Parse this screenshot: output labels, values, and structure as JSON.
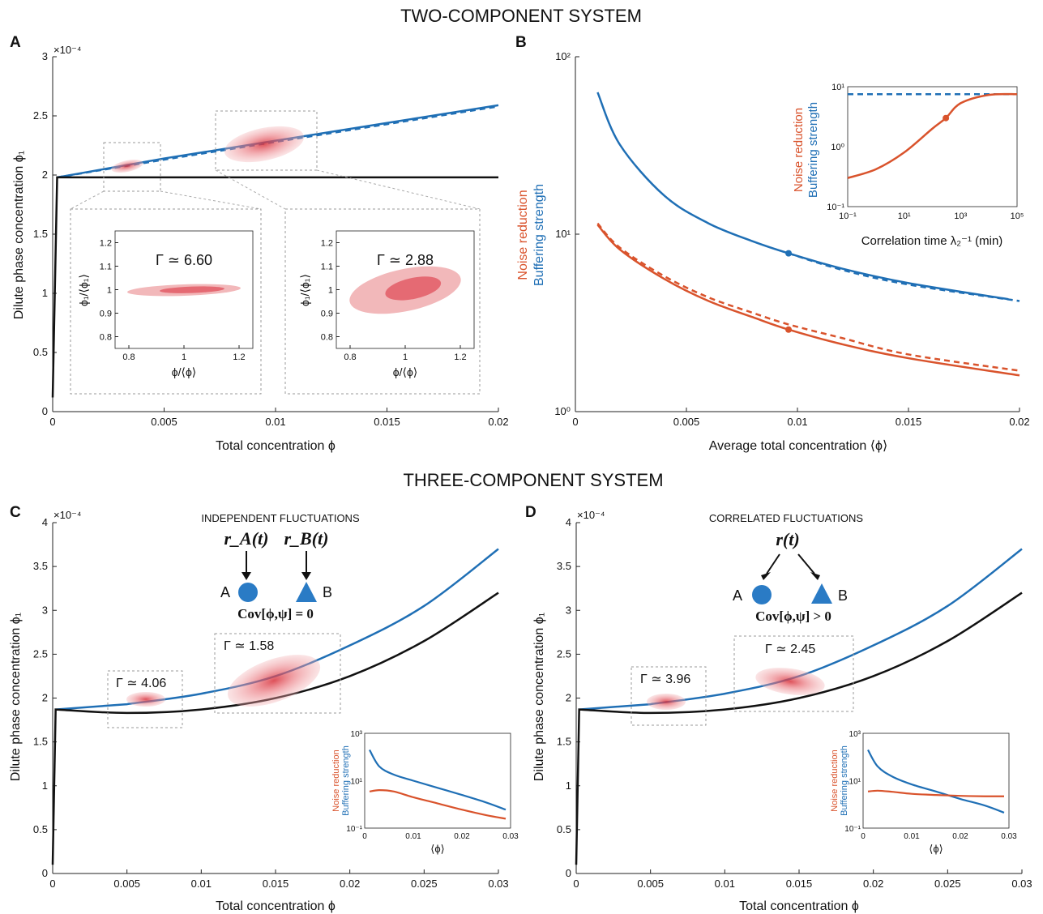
{
  "titles": {
    "two": "TWO-COMPONENT SYSTEM",
    "three": "THREE-COMPONENT SYSTEM"
  },
  "colors": {
    "blue": "#1f6fb5",
    "orange": "#d9532c",
    "black": "#111111",
    "pink": "#e8828a"
  },
  "panels": {
    "A": {
      "label": "A",
      "exponent": "×10⁻⁴",
      "xlabel": "Total concentration ϕ",
      "ylabel": "Dilute phase concentration ϕ₁",
      "inset_left_gamma": "Γ ≃ 6.60",
      "inset_right_gamma": "Γ ≃ 2.88",
      "inset_ylabel": "ϕ₁/⟨ϕ₁⟩",
      "inset_xlabel": "ϕ/⟨ϕ⟩"
    },
    "B": {
      "label": "B",
      "xlabel": "Average total concentration ⟨ϕ⟩",
      "legend_noise": "Noise reduction",
      "legend_buffer": "Buffering strength",
      "inset_xlabel": "Correlation time λ₂⁻¹ (min)"
    },
    "C": {
      "label": "C",
      "exponent": "×10⁻⁴",
      "xlabel": "Total concentration ϕ",
      "ylabel": "Dilute phase concentration ϕ₁",
      "heading": "INDEPENDENT FLUCTUATIONS",
      "rA": "r_A(t)",
      "rB": "r_B(t)",
      "A": "A",
      "B": "B",
      "cov": "Cov[ϕ,ψ] = 0",
      "gamma1": "Γ ≃ 4.06",
      "gamma2": "Γ ≃ 1.58",
      "inset_noise": "Noise reduction",
      "inset_buffer": "Buffering strength",
      "inset_xlabel": "⟨ϕ⟩"
    },
    "D": {
      "label": "D",
      "exponent": "×10⁻⁴",
      "xlabel": "Total concentration ϕ",
      "ylabel": "Dilute phase concentration ϕ₁",
      "heading": "CORRELATED FLUCTUATIONS",
      "r": "r(t)",
      "A": "A",
      "B": "B",
      "cov": "Cov[ϕ,ψ] > 0",
      "gamma1": "Γ ≃ 3.96",
      "gamma2": "Γ ≃ 2.45",
      "inset_noise": "Noise reduction",
      "inset_buffer": "Buffering strength",
      "inset_xlabel": "⟨ϕ⟩"
    }
  },
  "chart_data": [
    {
      "panel": "A",
      "type": "line",
      "xlim": [
        0,
        0.02
      ],
      "ylim": [
        0,
        3
      ],
      "xticks": [
        "0",
        "0.005",
        "0.01",
        "0.015",
        "0.02"
      ],
      "yticks": [
        "0",
        "0.5",
        "1",
        "1.5",
        "2",
        "2.5",
        "3"
      ],
      "series": [
        {
          "style": "solid-blue",
          "x": [
            0.0002,
            0.005,
            0.01,
            0.015,
            0.02
          ],
          "y": [
            1.98,
            2.14,
            2.29,
            2.44,
            2.59
          ]
        },
        {
          "style": "dashed-blue",
          "x": [
            0.0002,
            0.005,
            0.01,
            0.015,
            0.02
          ],
          "y": [
            1.98,
            2.13,
            2.28,
            2.43,
            2.58
          ]
        },
        {
          "style": "solid-black",
          "x": [
            0,
            0.0002,
            0.005,
            0.01,
            0.015,
            0.02
          ],
          "y": [
            0.12,
            1.98,
            1.98,
            1.98,
            1.98,
            1.98
          ]
        }
      ],
      "insets": [
        {
          "xlim": [
            0.75,
            1.25
          ],
          "ylim": [
            0.75,
            1.25
          ],
          "xticks": [
            "0.8",
            "1",
            "1.2"
          ],
          "yticks": [
            "0.8",
            "0.9",
            "1",
            "1.1",
            "1.2"
          ]
        },
        {
          "xlim": [
            0.75,
            1.25
          ],
          "ylim": [
            0.75,
            1.25
          ],
          "xticks": [
            "0.8",
            "1",
            "1.2"
          ],
          "yticks": [
            "0.8",
            "0.9",
            "1",
            "1.1",
            "1.2"
          ]
        }
      ]
    },
    {
      "panel": "B",
      "type": "line",
      "yscale": "log",
      "xlim": [
        0,
        0.02
      ],
      "ylim": [
        1,
        100
      ],
      "xticks": [
        "0",
        "0.005",
        "0.01",
        "0.015",
        "0.02"
      ],
      "yticks": [
        "10⁰",
        "10¹",
        "10²"
      ],
      "series": [
        {
          "name": "Buffering strength",
          "style": "solid-blue",
          "x": [
            0.001,
            0.002,
            0.004,
            0.006,
            0.008,
            0.0096,
            0.012,
            0.015,
            0.0195
          ],
          "y": [
            63,
            32,
            16.5,
            11.5,
            9.1,
            7.8,
            6.4,
            5.3,
            4.3
          ]
        },
        {
          "name": "Buffering strength",
          "style": "dashed-blue",
          "x": [
            0.0096,
            0.012,
            0.015,
            0.02
          ],
          "y": [
            7.8,
            6.3,
            5.2,
            4.2
          ]
        },
        {
          "name": "Noise reduction",
          "style": "solid-orange",
          "x": [
            0.001,
            0.002,
            0.004,
            0.006,
            0.008,
            0.0096,
            0.012,
            0.015,
            0.02
          ],
          "y": [
            11.3,
            8.2,
            5.6,
            4.2,
            3.4,
            2.9,
            2.4,
            2.0,
            1.6
          ]
        },
        {
          "name": "Noise reduction",
          "style": "dashed-orange",
          "x": [
            0.001,
            0.002,
            0.004,
            0.006,
            0.008,
            0.0096,
            0.012,
            0.015,
            0.02
          ],
          "y": [
            11.5,
            8.4,
            5.8,
            4.4,
            3.6,
            3.1,
            2.6,
            2.1,
            1.7
          ]
        }
      ],
      "markers": [
        {
          "x": 0.0096,
          "y": 7.8,
          "style": "blue"
        },
        {
          "x": 0.0096,
          "y": 2.9,
          "style": "orange"
        }
      ],
      "inset": {
        "xticks": [
          "10⁻¹",
          "10¹",
          "10³",
          "10⁵"
        ],
        "yticks": [
          "10⁻¹",
          "10⁰",
          "10¹"
        ],
        "buffer_dashed": 7.5,
        "noise_x": [
          0.1,
          1,
          10,
          100,
          300,
          1000,
          10000,
          100000
        ],
        "noise_y": [
          0.3,
          0.42,
          0.8,
          2.0,
          3.0,
          5.3,
          7.3,
          7.5
        ]
      }
    },
    {
      "panel": "C",
      "type": "line",
      "xlim": [
        0,
        0.03
      ],
      "ylim": [
        0,
        4
      ],
      "xticks": [
        "0",
        "0.005",
        "0.01",
        "0.015",
        "0.02",
        "0.025",
        "0.03"
      ],
      "yticks": [
        "0",
        "0.5",
        "1",
        "1.5",
        "2",
        "2.5",
        "3",
        "3.5",
        "4"
      ],
      "series": [
        {
          "style": "solid-blue",
          "x": [
            0.0002,
            0.005,
            0.01,
            0.015,
            0.02,
            0.025,
            0.03
          ],
          "y": [
            1.87,
            1.93,
            2.05,
            2.25,
            2.6,
            3.05,
            3.7
          ]
        },
        {
          "style": "solid-black",
          "x": [
            0,
            0.0002,
            0.005,
            0.01,
            0.015,
            0.02,
            0.025,
            0.03
          ],
          "y": [
            0.1,
            1.87,
            1.83,
            1.87,
            2.0,
            2.25,
            2.65,
            3.2
          ]
        }
      ],
      "inset": {
        "xticks": [
          "0",
          "0.01",
          "0.02",
          "0.03"
        ],
        "yticks": [
          "10⁻¹",
          "10¹",
          "10³"
        ],
        "buffer_x": [
          0.001,
          0.003,
          0.006,
          0.01,
          0.015,
          0.02,
          0.025,
          0.029
        ],
        "buffer_y": [
          200,
          40,
          18,
          10,
          5,
          2.5,
          1.2,
          0.6
        ],
        "noise_x": [
          0.001,
          0.003,
          0.006,
          0.01,
          0.015,
          0.02,
          0.025,
          0.029
        ],
        "noise_y": [
          3.5,
          4.0,
          3.5,
          2.0,
          1.1,
          0.6,
          0.35,
          0.25
        ]
      }
    },
    {
      "panel": "D",
      "type": "line",
      "xlim": [
        0,
        0.03
      ],
      "ylim": [
        0,
        4
      ],
      "xticks": [
        "0",
        "0.005",
        "0.01",
        "0.015",
        "0.02",
        "0.025",
        "0.03"
      ],
      "yticks": [
        "0",
        "0.5",
        "1",
        "1.5",
        "2",
        "2.5",
        "3",
        "3.5",
        "4"
      ],
      "series": [
        {
          "style": "solid-blue",
          "x": [
            0.0002,
            0.005,
            0.01,
            0.015,
            0.02,
            0.025,
            0.03
          ],
          "y": [
            1.87,
            1.93,
            2.05,
            2.25,
            2.6,
            3.05,
            3.7
          ]
        },
        {
          "style": "solid-black",
          "x": [
            0,
            0.0002,
            0.005,
            0.01,
            0.015,
            0.02,
            0.025,
            0.03
          ],
          "y": [
            0.1,
            1.87,
            1.83,
            1.87,
            2.0,
            2.25,
            2.65,
            3.2
          ]
        }
      ],
      "inset": {
        "xticks": [
          "0",
          "0.01",
          "0.02",
          "0.03"
        ],
        "yticks": [
          "10⁻¹",
          "10¹",
          "10³"
        ],
        "buffer_x": [
          0.001,
          0.003,
          0.006,
          0.01,
          0.015,
          0.02,
          0.025,
          0.029
        ],
        "buffer_y": [
          200,
          40,
          15,
          7,
          3.5,
          1.7,
          0.9,
          0.45
        ],
        "noise_x": [
          0.001,
          0.003,
          0.006,
          0.01,
          0.015,
          0.02,
          0.025,
          0.029
        ],
        "noise_y": [
          3.5,
          3.8,
          3.4,
          2.8,
          2.5,
          2.3,
          2.2,
          2.2
        ]
      }
    }
  ]
}
